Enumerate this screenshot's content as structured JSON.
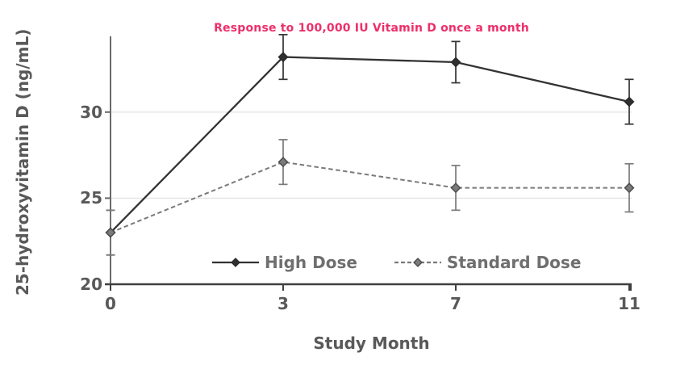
{
  "colors": {
    "background": "#ffffff",
    "title": "#ED2F69",
    "axis_text": "#595959",
    "legend_text": "#6f6f6f",
    "grid_line": "#e4e4e4",
    "y_axis_line": "#6a6a6a",
    "x_axis_line": "#3f3f3f",
    "high_dose": "#333333",
    "standard_dose": "#7a7a7a"
  },
  "chart_data": {
    "type": "line",
    "title": "Response to 100,000 IU Vitamin D once a month",
    "xlabel": "Study Month",
    "ylabel": "25-hydroxyvitamin D (ng/mL)",
    "categories": [
      "0",
      "3",
      "7",
      "11"
    ],
    "yticks": [
      20,
      25,
      30
    ],
    "ylim": [
      20,
      34.4
    ],
    "gridlines_at": [
      25,
      30
    ],
    "grid": "horizontal-only",
    "legend_position": "bottom-inside",
    "error_bars": "visible, approx ±1.2 to ±1.4 ng/mL",
    "series": [
      {
        "name": "High Dose",
        "values": [
          23.0,
          33.2,
          32.9,
          30.6
        ],
        "error": [
          1.3,
          1.3,
          1.2,
          1.3
        ],
        "line_style": "solid",
        "color": "#333333",
        "marker": "diamond",
        "marker_fill": "#2f2f2f",
        "marker_edge": "#2b2b2b"
      },
      {
        "name": "Standard Dose",
        "values": [
          23.0,
          27.1,
          25.6,
          25.6
        ],
        "error": [
          1.3,
          1.3,
          1.3,
          1.4
        ],
        "line_style": "dashed",
        "color": "#7a7a7a",
        "marker": "diamond",
        "marker_fill": "#7a7a7a",
        "marker_edge": "#4a4a4a"
      }
    ]
  }
}
